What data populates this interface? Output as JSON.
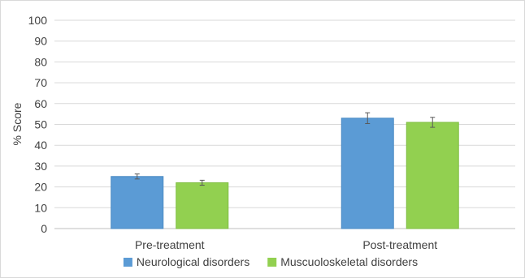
{
  "chart_data": {
    "type": "bar",
    "title": "",
    "xlabel": "",
    "ylabel": "% Score",
    "ylim": [
      0,
      100
    ],
    "yticks": [
      0,
      10,
      20,
      30,
      40,
      50,
      60,
      70,
      80,
      90,
      100
    ],
    "grid": true,
    "legend_position": "bottom",
    "categories": [
      "Pre-treatment",
      "Post-treatment"
    ],
    "series": [
      {
        "name": "Neurological disorders",
        "values": [
          25,
          53
        ],
        "errors": [
          1.2,
          2.6
        ],
        "color": "#5B9BD5"
      },
      {
        "name": "Muscuoloskeletal disorders",
        "values": [
          22,
          51
        ],
        "errors": [
          1.2,
          2.4
        ],
        "color": "#92D050"
      }
    ]
  }
}
